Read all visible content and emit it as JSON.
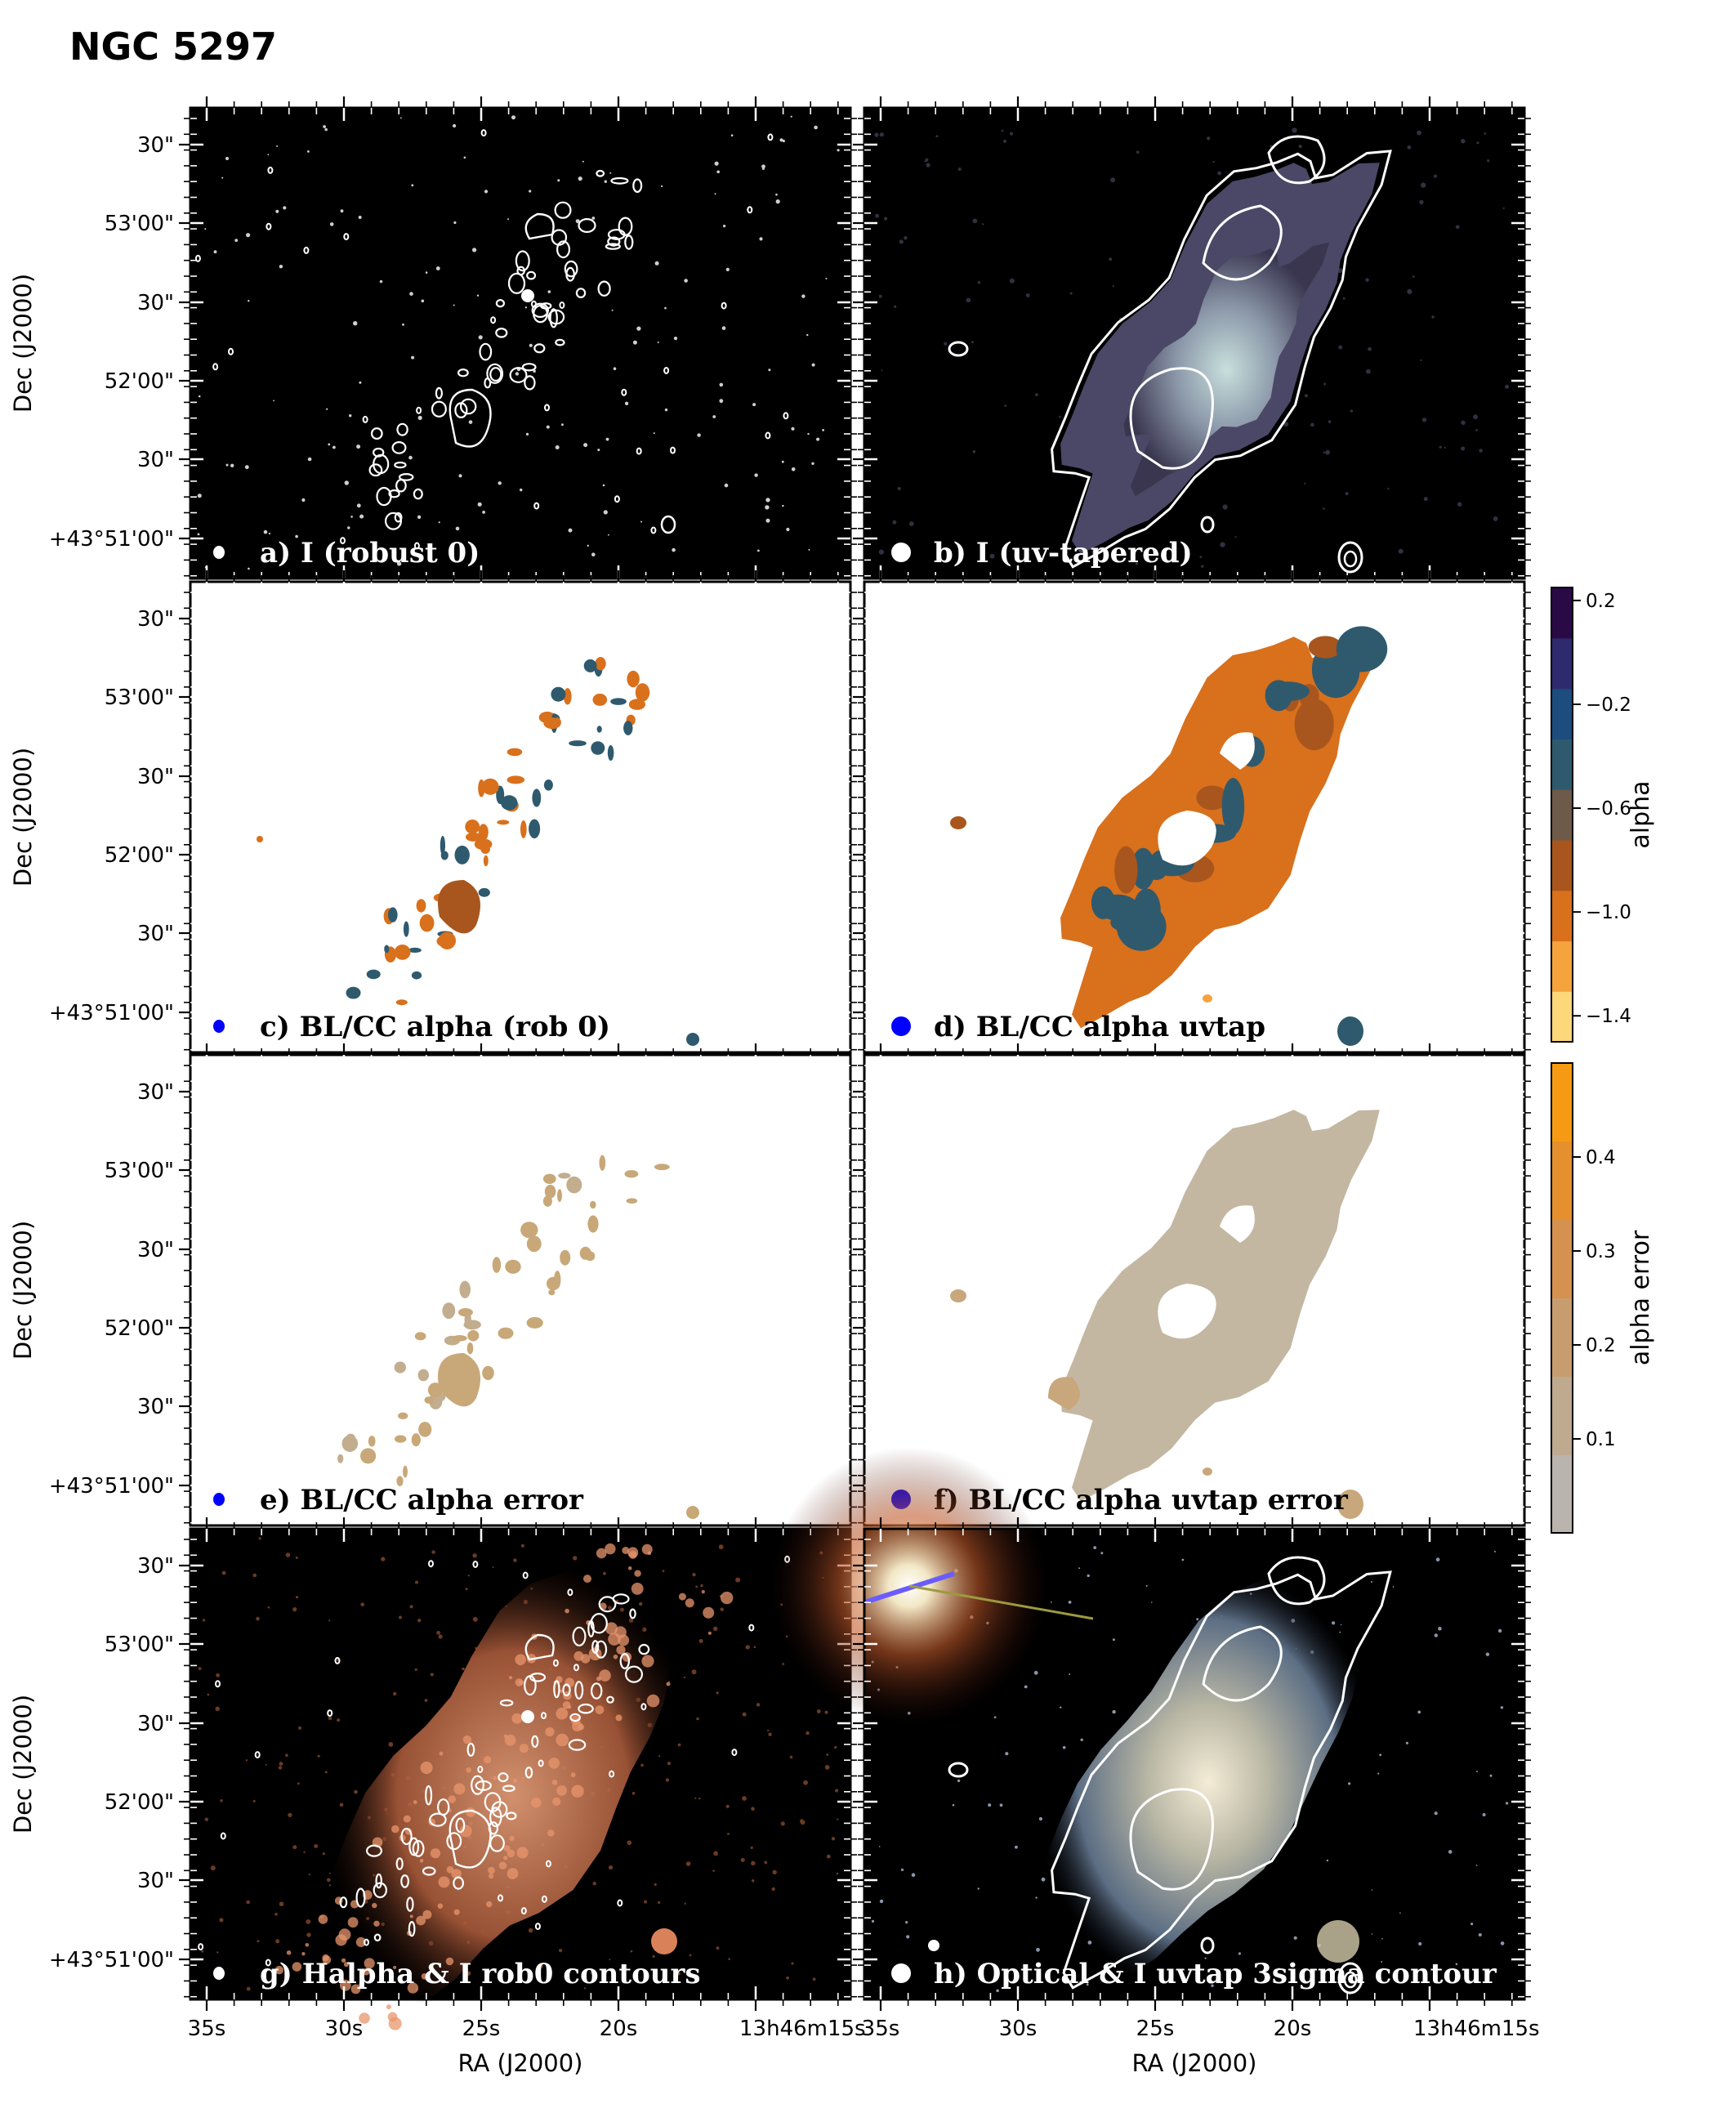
{
  "title": "NGC 5297",
  "axes": {
    "dec_label": "Dec (J2000)",
    "ra_label": "RA (J2000)",
    "dec_ticks": [
      "30\"",
      "53'00\"",
      "30\"",
      "52'00\"",
      "30\"",
      "+43°51'00\""
    ],
    "ra_ticks": [
      "35s",
      "30s",
      "25s",
      "20s",
      "13h46m15s"
    ]
  },
  "panels": [
    {
      "id": "a",
      "label": "a) I (robust 0)",
      "style": "dark-radio",
      "beam_color": "#ffffff",
      "beam": "small"
    },
    {
      "id": "b",
      "label": "b) I (uv-tapered)",
      "style": "dark-taper",
      "beam_color": "#ffffff",
      "beam": "large"
    },
    {
      "id": "c",
      "label": "c) BL/CC alpha (rob 0)",
      "style": "alpha-rob",
      "beam_color": "#0000ff",
      "beam": "small"
    },
    {
      "id": "d",
      "label": "d) BL/CC alpha uvtap",
      "style": "alpha-taper",
      "beam_color": "#0000ff",
      "beam": "large"
    },
    {
      "id": "e",
      "label": "e)  BL/CC alpha error",
      "style": "err-rob",
      "beam_color": "#0000ff",
      "beam": "small"
    },
    {
      "id": "f",
      "label": "f) BL/CC alpha uvtap error",
      "style": "err-taper",
      "beam_color": "#0000ff",
      "beam": "large"
    },
    {
      "id": "g",
      "label": "g) Halpha & I rob0 contours",
      "style": "halpha",
      "beam_color": "#ffffff",
      "beam": "small"
    },
    {
      "id": "h",
      "label": "h) Optical & I uvtap 3sigma contour",
      "style": "optical",
      "beam_color": "#ffffff",
      "beam": "large"
    }
  ],
  "colorbars": [
    {
      "label": "alpha",
      "range": [
        -1.5,
        0.25
      ],
      "ticks": [
        {
          "value": 0.2,
          "text": "0.2"
        },
        {
          "value": -0.2,
          "text": "−0.2"
        },
        {
          "value": -0.6,
          "text": "−0.6"
        },
        {
          "value": -1.0,
          "text": "−1.0"
        },
        {
          "value": -1.4,
          "text": "−1.4"
        }
      ],
      "colors": [
        "#fdd87a",
        "#f5a33c",
        "#d9701c",
        "#a8561e",
        "#6e5a48",
        "#2f5a6e",
        "#1d4c7e",
        "#2e2a6e",
        "#2a0a45"
      ]
    },
    {
      "label": "alpha error",
      "range": [
        0.0,
        0.5
      ],
      "ticks": [
        {
          "value": 0.1,
          "text": "0.1"
        },
        {
          "value": 0.2,
          "text": "0.2"
        },
        {
          "value": 0.3,
          "text": "0.3"
        },
        {
          "value": 0.4,
          "text": "0.4"
        }
      ],
      "colors": [
        "#b9b4ad",
        "#bfa98f",
        "#c79d6f",
        "#d49150",
        "#e58f2e",
        "#f59a12"
      ]
    }
  ]
}
